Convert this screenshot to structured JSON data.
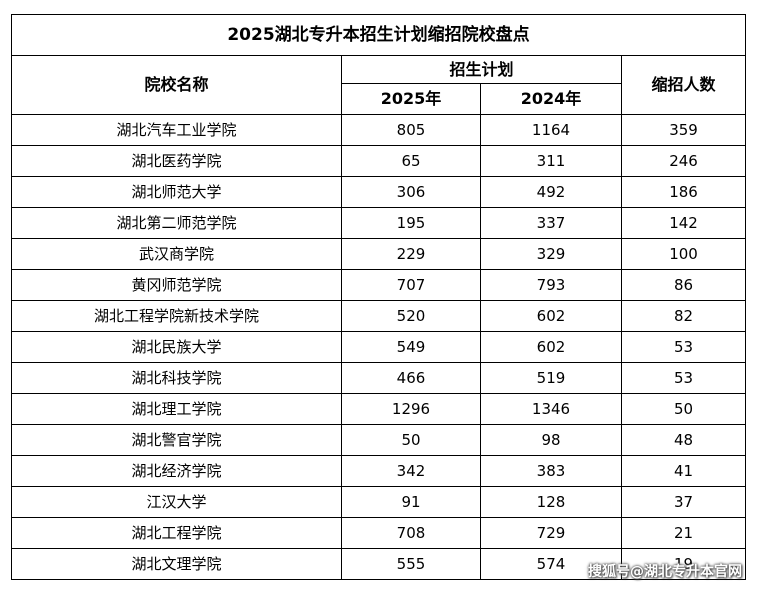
{
  "title": "2025湖北专升本招生计划缩招院校盘点",
  "headers": {
    "school_name": "院校名称",
    "plan_group": "招生计划",
    "year_2025": "2025年",
    "year_2024": "2024年",
    "reduction": "缩招人数"
  },
  "rows": [
    {
      "school": "湖北汽车工业学院",
      "plan_2025": "805",
      "plan_2024": "1164",
      "reduction": "359"
    },
    {
      "school": "湖北医药学院",
      "plan_2025": "65",
      "plan_2024": "311",
      "reduction": "246"
    },
    {
      "school": "湖北师范大学",
      "plan_2025": "306",
      "plan_2024": "492",
      "reduction": "186"
    },
    {
      "school": "湖北第二师范学院",
      "plan_2025": "195",
      "plan_2024": "337",
      "reduction": "142"
    },
    {
      "school": "武汉商学院",
      "plan_2025": "229",
      "plan_2024": "329",
      "reduction": "100"
    },
    {
      "school": "黄冈师范学院",
      "plan_2025": "707",
      "plan_2024": "793",
      "reduction": "86"
    },
    {
      "school": "湖北工程学院新技术学院",
      "plan_2025": "520",
      "plan_2024": "602",
      "reduction": "82"
    },
    {
      "school": "湖北民族大学",
      "plan_2025": "549",
      "plan_2024": "602",
      "reduction": "53"
    },
    {
      "school": "湖北科技学院",
      "plan_2025": "466",
      "plan_2024": "519",
      "reduction": "53"
    },
    {
      "school": "湖北理工学院",
      "plan_2025": "1296",
      "plan_2024": "1346",
      "reduction": "50"
    },
    {
      "school": "湖北警官学院",
      "plan_2025": "50",
      "plan_2024": "98",
      "reduction": "48"
    },
    {
      "school": "湖北经济学院",
      "plan_2025": "342",
      "plan_2024": "383",
      "reduction": "41"
    },
    {
      "school": "江汉大学",
      "plan_2025": "91",
      "plan_2024": "128",
      "reduction": "37"
    },
    {
      "school": "湖北工程学院",
      "plan_2025": "708",
      "plan_2024": "729",
      "reduction": "21"
    },
    {
      "school": "湖北文理学院",
      "plan_2025": "555",
      "plan_2024": "574",
      "reduction": "19"
    }
  ],
  "watermark": "搜狐号@湖北专升本官网"
}
